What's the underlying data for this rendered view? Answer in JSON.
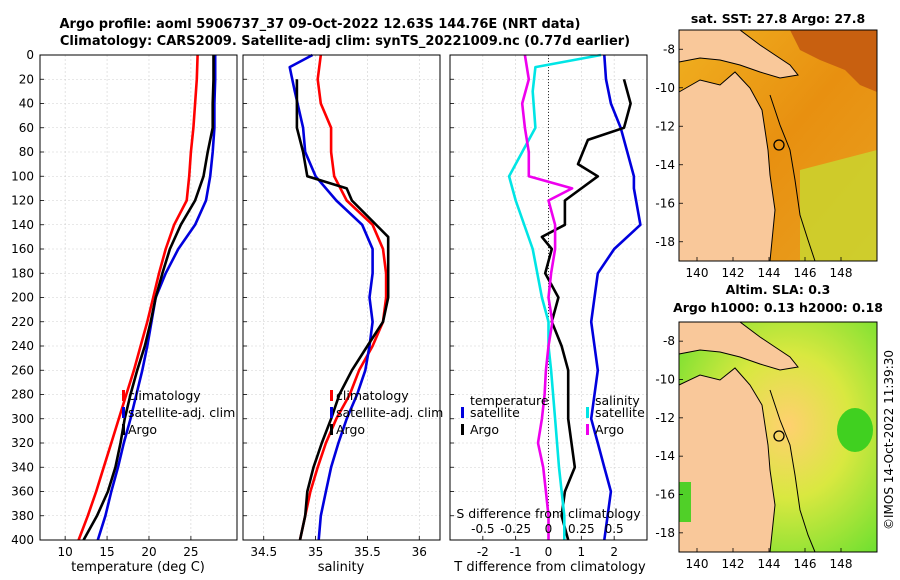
{
  "header": {
    "title_line1": "Argo profile: aoml 5906737_37 09-Oct-2022 12.63S 144.76E (NRT data)",
    "title_line2": "Climatology: CARS2009. Satellite-adj clim: synTS_20221009.nc (0.77d earlier)"
  },
  "depth_axis": {
    "min": 0,
    "max": 400,
    "ticks": [
      0,
      20,
      40,
      60,
      80,
      100,
      120,
      140,
      160,
      180,
      200,
      220,
      240,
      260,
      280,
      300,
      320,
      340,
      360,
      380,
      400
    ]
  },
  "colors": {
    "climatology": "#ff0000",
    "satellite": "#0000dd",
    "argo": "#000000",
    "salinity_cyan": "#00e5e5",
    "salinity_magenta": "#ee00ee",
    "land": "#f9c89a"
  },
  "chart_data": [
    {
      "id": "temperature",
      "type": "line",
      "xlabel": "temperature (deg C)",
      "xlim": [
        7,
        30.5
      ],
      "xticks": [
        10,
        15,
        20,
        25
      ],
      "ylim": [
        400,
        0
      ],
      "series": [
        {
          "name": "climatology",
          "color": "#ff0000",
          "points": [
            [
              25.8,
              0
            ],
            [
              25.7,
              20
            ],
            [
              25.5,
              40
            ],
            [
              25.3,
              60
            ],
            [
              25.0,
              80
            ],
            [
              24.8,
              100
            ],
            [
              24.5,
              120
            ],
            [
              23.0,
              140
            ],
            [
              22.0,
              160
            ],
            [
              21.2,
              180
            ],
            [
              20.5,
              200
            ],
            [
              19.8,
              220
            ],
            [
              19.0,
              240
            ],
            [
              18.2,
              260
            ],
            [
              17.3,
              280
            ],
            [
              16.4,
              300
            ],
            [
              15.5,
              320
            ],
            [
              14.6,
              340
            ],
            [
              13.7,
              360
            ],
            [
              12.7,
              380
            ],
            [
              11.6,
              400
            ]
          ]
        },
        {
          "name": "satellite-adj. clim",
          "color": "#0000dd",
          "points": [
            [
              27.9,
              0
            ],
            [
              27.9,
              20
            ],
            [
              27.8,
              40
            ],
            [
              27.8,
              60
            ],
            [
              27.6,
              80
            ],
            [
              27.3,
              100
            ],
            [
              26.8,
              120
            ],
            [
              25.5,
              140
            ],
            [
              23.5,
              160
            ],
            [
              22.0,
              180
            ],
            [
              20.8,
              200
            ],
            [
              20.3,
              220
            ],
            [
              19.8,
              240
            ],
            [
              19.2,
              260
            ],
            [
              18.5,
              280
            ],
            [
              17.8,
              300
            ],
            [
              17.0,
              320
            ],
            [
              16.3,
              340
            ],
            [
              15.5,
              360
            ],
            [
              14.8,
              380
            ],
            [
              13.9,
              400
            ]
          ]
        },
        {
          "name": "Argo",
          "color": "#000000",
          "points": [
            [
              27.7,
              0
            ],
            [
              27.7,
              20
            ],
            [
              27.6,
              40
            ],
            [
              27.6,
              60
            ],
            [
              27.0,
              80
            ],
            [
              26.5,
              100
            ],
            [
              25.5,
              120
            ],
            [
              23.8,
              140
            ],
            [
              22.5,
              160
            ],
            [
              21.6,
              180
            ],
            [
              20.8,
              200
            ],
            [
              20.2,
              220
            ],
            [
              19.5,
              240
            ],
            [
              18.6,
              260
            ],
            [
              17.8,
              280
            ],
            [
              17.1,
              300
            ],
            [
              16.6,
              320
            ],
            [
              16.0,
              340
            ],
            [
              15.1,
              360
            ],
            [
              13.8,
              380
            ],
            [
              12.2,
              400
            ]
          ]
        }
      ],
      "legend": [
        "climatology",
        "satellite-adj. clim",
        "Argo"
      ]
    },
    {
      "id": "salinity",
      "type": "line",
      "xlabel": "salinity",
      "xlim": [
        34.3,
        36.2
      ],
      "xticks": [
        34.5,
        35,
        35.5,
        36
      ],
      "ylim": [
        400,
        0
      ],
      "series": [
        {
          "name": "climatology",
          "color": "#ff0000",
          "points": [
            [
              35.05,
              0
            ],
            [
              35.02,
              20
            ],
            [
              35.05,
              40
            ],
            [
              35.15,
              60
            ],
            [
              35.15,
              80
            ],
            [
              35.18,
              100
            ],
            [
              35.3,
              120
            ],
            [
              35.55,
              140
            ],
            [
              35.65,
              160
            ],
            [
              35.68,
              180
            ],
            [
              35.68,
              200
            ],
            [
              35.65,
              220
            ],
            [
              35.55,
              240
            ],
            [
              35.42,
              260
            ],
            [
              35.33,
              280
            ],
            [
              35.2,
              300
            ],
            [
              35.1,
              320
            ],
            [
              35.02,
              340
            ],
            [
              34.95,
              360
            ],
            [
              34.9,
              380
            ],
            [
              34.85,
              400
            ]
          ]
        },
        {
          "name": "satellite-adj. clim",
          "color": "#0000dd",
          "points": [
            [
              34.97,
              0
            ],
            [
              34.75,
              10
            ],
            [
              34.8,
              30
            ],
            [
              34.88,
              60
            ],
            [
              34.9,
              80
            ],
            [
              35.0,
              100
            ],
            [
              35.2,
              120
            ],
            [
              35.45,
              140
            ],
            [
              35.55,
              160
            ],
            [
              35.55,
              180
            ],
            [
              35.52,
              200
            ],
            [
              35.55,
              220
            ],
            [
              35.52,
              240
            ],
            [
              35.48,
              260
            ],
            [
              35.4,
              280
            ],
            [
              35.3,
              300
            ],
            [
              35.22,
              320
            ],
            [
              35.15,
              340
            ],
            [
              35.1,
              360
            ],
            [
              35.05,
              380
            ],
            [
              35.03,
              400
            ]
          ]
        },
        {
          "name": "Argo",
          "color": "#000000",
          "points": [
            [
              34.82,
              20
            ],
            [
              34.82,
              40
            ],
            [
              34.82,
              60
            ],
            [
              34.88,
              80
            ],
            [
              34.92,
              100
            ],
            [
              35.3,
              110
            ],
            [
              35.35,
              120
            ],
            [
              35.7,
              150
            ],
            [
              35.7,
              170
            ],
            [
              35.7,
              200
            ],
            [
              35.65,
              220
            ],
            [
              35.5,
              240
            ],
            [
              35.35,
              260
            ],
            [
              35.23,
              280
            ],
            [
              35.15,
              300
            ],
            [
              35.06,
              320
            ],
            [
              34.98,
              340
            ],
            [
              34.92,
              360
            ],
            [
              34.9,
              380
            ],
            [
              34.85,
              400
            ]
          ]
        }
      ],
      "legend": [
        "climatology",
        "satellite-adj. clim",
        "Argo"
      ]
    },
    {
      "id": "differences",
      "type": "line",
      "xlabel": "T difference from climatology",
      "xlabel_top": "S difference from climatology",
      "xlim": [
        -3,
        3
      ],
      "xticks": [
        -2,
        -1,
        0,
        1,
        2
      ],
      "s_xlim": [
        -0.75,
        0.75
      ],
      "s_xticks": [
        -0.5,
        -0.25,
        0,
        0.25,
        0.5
      ],
      "s_xtick_labels": [
        "-0.5",
        "-0.25",
        "0",
        "0.25",
        "0.5"
      ],
      "ylim": [
        400,
        0
      ],
      "series": [
        {
          "name": "T satellite",
          "color": "#0000dd",
          "points": [
            [
              1.7,
              0
            ],
            [
              1.75,
              20
            ],
            [
              1.9,
              40
            ],
            [
              2.2,
              60
            ],
            [
              2.4,
              80
            ],
            [
              2.6,
              100
            ],
            [
              2.6,
              110
            ],
            [
              2.8,
              140
            ],
            [
              2.0,
              160
            ],
            [
              1.5,
              180
            ],
            [
              1.4,
              200
            ],
            [
              1.3,
              220
            ],
            [
              1.4,
              240
            ],
            [
              1.5,
              260
            ],
            [
              1.4,
              280
            ],
            [
              1.3,
              300
            ],
            [
              1.5,
              320
            ],
            [
              1.7,
              340
            ],
            [
              1.9,
              360
            ],
            [
              1.8,
              380
            ],
            [
              1.7,
              400
            ]
          ]
        },
        {
          "name": "T Argo",
          "color": "#000000",
          "points": [
            [
              2.3,
              20
            ],
            [
              2.5,
              40
            ],
            [
              2.3,
              60
            ],
            [
              1.2,
              70
            ],
            [
              0.9,
              90
            ],
            [
              1.5,
              100
            ],
            [
              0.5,
              120
            ],
            [
              0.5,
              140
            ],
            [
              -0.2,
              150
            ],
            [
              0.1,
              160
            ],
            [
              -0.1,
              180
            ],
            [
              0.3,
              200
            ],
            [
              0.1,
              220
            ],
            [
              0.4,
              240
            ],
            [
              0.6,
              260
            ],
            [
              0.6,
              300
            ],
            [
              0.8,
              340
            ],
            [
              0.5,
              360
            ],
            [
              0.4,
              380
            ],
            [
              0.6,
              400
            ]
          ]
        },
        {
          "name": "S satellite",
          "color": "#00e5e5",
          "points": [
            [
              0.4,
              0
            ],
            [
              -0.1,
              10
            ],
            [
              -0.12,
              30
            ],
            [
              -0.1,
              60
            ],
            [
              -0.2,
              80
            ],
            [
              -0.3,
              100
            ],
            [
              -0.25,
              120
            ],
            [
              -0.12,
              160
            ],
            [
              -0.05,
              200
            ],
            [
              0,
              220
            ],
            [
              0,
              240
            ],
            [
              0.02,
              260
            ],
            [
              0.05,
              300
            ],
            [
              0.08,
              340
            ],
            [
              0.12,
              380
            ],
            [
              0.12,
              400
            ]
          ]
        },
        {
          "name": "S Argo",
          "color": "#ee00ee",
          "points": [
            [
              -0.18,
              0
            ],
            [
              -0.15,
              20
            ],
            [
              -0.2,
              40
            ],
            [
              -0.18,
              60
            ],
            [
              -0.15,
              80
            ],
            [
              -0.15,
              100
            ],
            [
              0.18,
              110
            ],
            [
              0,
              120
            ],
            [
              0.05,
              140
            ],
            [
              0.05,
              160
            ],
            [
              0.02,
              180
            ],
            [
              0,
              200
            ],
            [
              0.03,
              220
            ],
            [
              0,
              240
            ],
            [
              -0.02,
              260
            ],
            [
              -0.03,
              280
            ],
            [
              -0.05,
              300
            ],
            [
              -0.08,
              320
            ],
            [
              -0.04,
              340
            ],
            [
              -0.02,
              360
            ],
            [
              0,
              380
            ],
            [
              0,
              400
            ]
          ]
        }
      ],
      "legend_groups": [
        {
          "title": "temperature",
          "items": [
            "satellite",
            "Argo"
          ]
        },
        {
          "title": "salinity",
          "items": [
            "satellite",
            "Argo"
          ]
        }
      ]
    },
    {
      "id": "sst_map",
      "type": "heatmap",
      "title": "sat. SST: 27.8 Argo: 27.8",
      "xticks": [
        140,
        142,
        144,
        146,
        148
      ],
      "yticks": [
        -8,
        -10,
        -12,
        -14,
        -16,
        -18
      ],
      "xlim": [
        139,
        150
      ],
      "ylim": [
        -19,
        -7
      ],
      "marker": {
        "lon": 144.76,
        "lat": -12.63
      }
    },
    {
      "id": "sla_map",
      "type": "heatmap",
      "title_line1": "Altim. SLA: 0.3",
      "title_line2": "Argo h1000: 0.13 h2000: 0.18",
      "xticks": [
        140,
        142,
        144,
        146,
        148
      ],
      "yticks": [
        -8,
        -10,
        -12,
        -14,
        -16,
        -18
      ],
      "xlim": [
        139,
        150
      ],
      "ylim": [
        -19,
        -7
      ],
      "marker": {
        "lon": 144.76,
        "lat": -12.63
      }
    }
  ],
  "credit": "©IMOS 14-Oct-2022 11:39:30"
}
